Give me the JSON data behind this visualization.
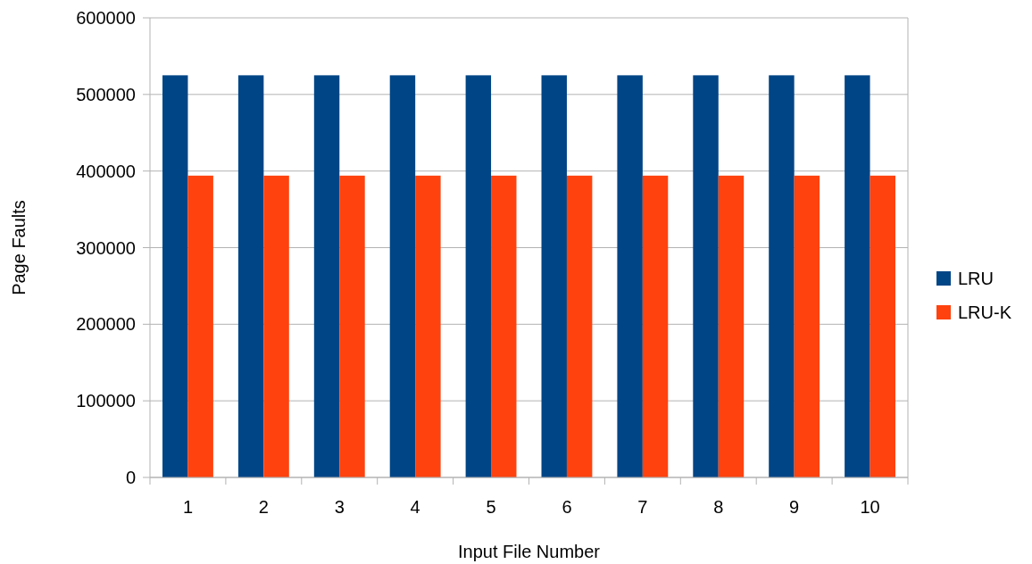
{
  "chart_data": {
    "type": "bar",
    "xlabel": "Input File Number",
    "ylabel": "Page Faults",
    "categories": [
      "1",
      "2",
      "3",
      "4",
      "5",
      "6",
      "7",
      "8",
      "9",
      "10"
    ],
    "series": [
      {
        "name": "LRU",
        "color": "#004586",
        "values": [
          525000,
          525000,
          525000,
          525000,
          525000,
          525000,
          525000,
          525000,
          525000,
          525000
        ]
      },
      {
        "name": "LRU-K",
        "color": "#ff420e",
        "values": [
          394000,
          394000,
          394000,
          394000,
          394000,
          394000,
          394000,
          394000,
          394000,
          394000
        ]
      }
    ],
    "ylim": [
      0,
      600000
    ],
    "yticks": [
      0,
      100000,
      200000,
      300000,
      400000,
      500000,
      600000
    ],
    "grid": "y",
    "legend": "right"
  }
}
